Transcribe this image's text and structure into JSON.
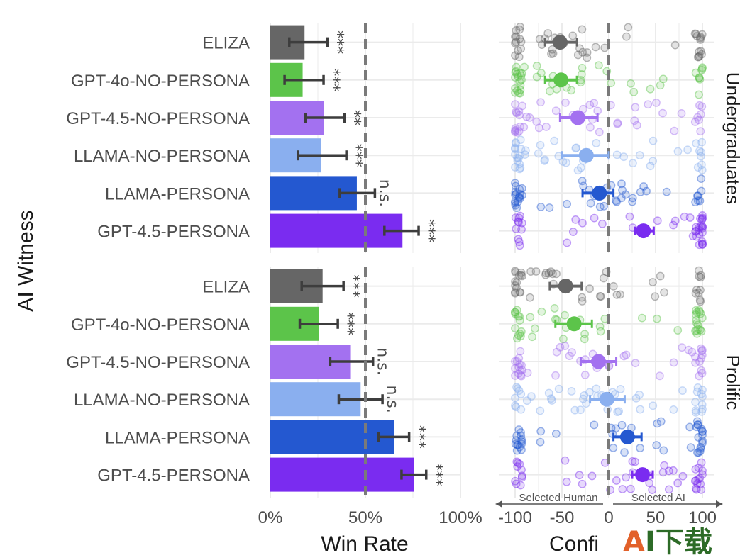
{
  "chart_data": [
    {
      "type": "bar",
      "panel": "win-rate",
      "y_axis_title": "AI Witness",
      "x_axis_title": "Win Rate",
      "x_ticks": [
        "0%",
        "50%",
        "100%"
      ],
      "xlim": [
        0,
        1
      ],
      "reference_line": 0.5,
      "categories": [
        "ELIZA",
        "GPT-4o-NO-PERSONA",
        "GPT-4.5-NO-PERSONA",
        "LLAMA-NO-PERSONA",
        "LLAMA-PERSONA",
        "GPT-4.5-PERSONA"
      ],
      "facets": [
        {
          "name": "Undergraduates",
          "values": [
            0.18,
            0.17,
            0.28,
            0.265,
            0.455,
            0.695
          ],
          "ci_low": [
            0.1,
            0.075,
            0.185,
            0.145,
            0.365,
            0.6
          ],
          "ci_high": [
            0.3,
            0.28,
            0.39,
            0.4,
            0.55,
            0.78
          ],
          "significance": [
            "***",
            "***",
            "**",
            "***",
            "n.s.",
            "***"
          ]
        },
        {
          "name": "Prolific",
          "values": [
            0.275,
            0.255,
            0.42,
            0.475,
            0.65,
            0.755
          ],
          "ci_low": [
            0.165,
            0.155,
            0.315,
            0.36,
            0.57,
            0.69
          ],
          "ci_high": [
            0.385,
            0.355,
            0.54,
            0.59,
            0.73,
            0.82
          ],
          "significance": [
            "***",
            "***",
            "n.s.",
            "n.s.",
            "***",
            "***"
          ]
        }
      ]
    },
    {
      "type": "scatter",
      "panel": "confidence",
      "x_axis_title": "Confi",
      "x_ticks": [
        "-100",
        "-50",
        "0",
        "50",
        "100"
      ],
      "x_tick_values": [
        -100,
        -50,
        0,
        50,
        100
      ],
      "xlim": [
        -100,
        100
      ],
      "reference_line": 0,
      "annotations": {
        "left": "Selected Human",
        "right": "Selected AI"
      },
      "facets": [
        {
          "name": "Undergraduates",
          "means": [
            -52,
            -51,
            -33,
            -24,
            -10,
            37
          ],
          "ci_low": [
            -68,
            -68,
            -52,
            -50,
            -28,
            28
          ],
          "ci_high": [
            -34,
            -34,
            -12,
            0,
            5,
            48
          ]
        },
        {
          "name": "Prolific",
          "means": [
            -46,
            -37,
            -11,
            -2,
            20,
            36
          ],
          "ci_low": [
            -63,
            -57,
            -30,
            -20,
            5,
            25
          ],
          "ci_high": [
            -29,
            -18,
            8,
            17,
            35,
            47
          ]
        }
      ]
    }
  ],
  "colors": {
    "ELIZA": "#666666",
    "GPT-4o-NO-PERSONA": "#5cc44a",
    "GPT-4.5-NO-PERSONA": "#a371f0",
    "LLAMA-NO-PERSONA": "#8aafef",
    "LLAMA-PERSONA": "#2458d0",
    "GPT-4.5-PERSONA": "#7a2cf0"
  },
  "watermark": "AI下载"
}
